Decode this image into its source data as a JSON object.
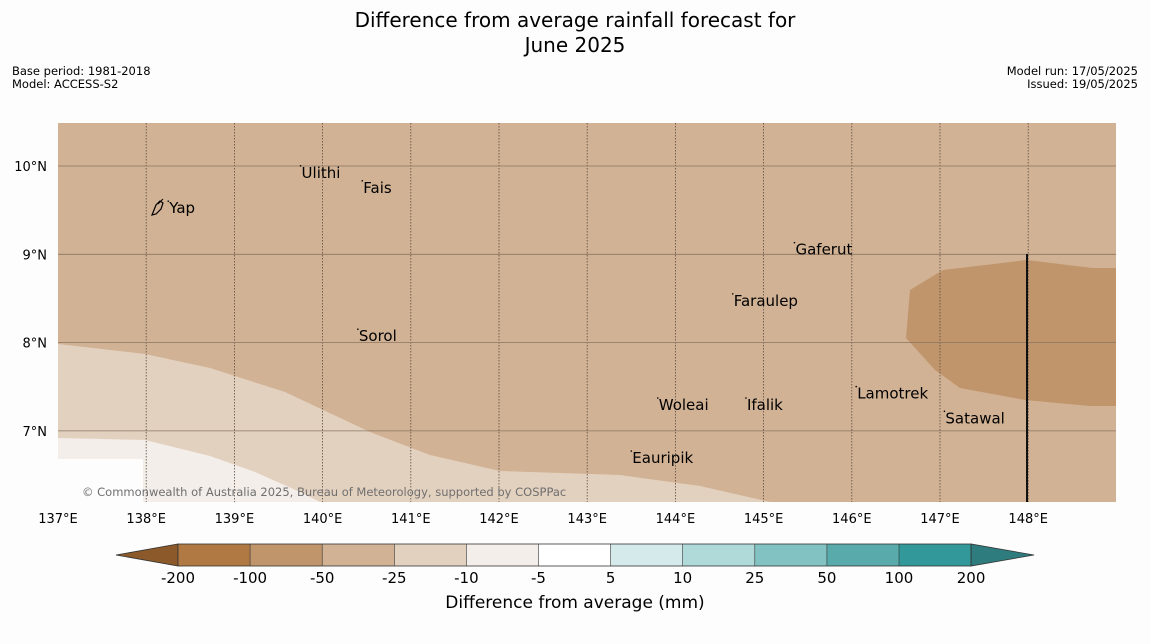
{
  "title": {
    "line1": "Difference from average rainfall forecast for",
    "line2": "June 2025"
  },
  "meta_left": {
    "base_period": "Base period: 1981-2018",
    "model": "Model: ACCESS-S2"
  },
  "meta_right": {
    "model_run": "Model run: 17/05/2025",
    "issued": "Issued: 19/05/2025"
  },
  "map": {
    "lon_ticks": [
      "137°E",
      "138°E",
      "139°E",
      "140°E",
      "141°E",
      "142°E",
      "143°E",
      "144°E",
      "145°E",
      "146°E",
      "147°E",
      "148°E"
    ],
    "lat_ticks": [
      "10°N",
      "9°N",
      "8°N",
      "7°N"
    ],
    "copyright": "© Commonwealth of Australia 2025, Bureau of Meteorology, supported by COSPPac",
    "places": [
      {
        "name": "Yap",
        "lon": 138.25,
        "lat": 9.5
      },
      {
        "name": "Ulithi",
        "lon": 139.75,
        "lat": 9.9
      },
      {
        "name": "Fais",
        "lon": 140.45,
        "lat": 9.73
      },
      {
        "name": "Gaferut",
        "lon": 145.35,
        "lat": 9.03
      },
      {
        "name": "Faraulep",
        "lon": 144.65,
        "lat": 8.45
      },
      {
        "name": "Sorol",
        "lon": 140.4,
        "lat": 8.05
      },
      {
        "name": "Lamotrek",
        "lon": 146.05,
        "lat": 7.4
      },
      {
        "name": "Woleai",
        "lon": 143.8,
        "lat": 7.27
      },
      {
        "name": "Ifalik",
        "lon": 144.8,
        "lat": 7.27
      },
      {
        "name": "Satawal",
        "lon": 147.05,
        "lat": 7.12
      },
      {
        "name": "Eauripik",
        "lon": 143.5,
        "lat": 6.67
      }
    ]
  },
  "colorbar": {
    "title": "Difference from average (mm)",
    "labels": [
      "-200",
      "-100",
      "-50",
      "-25",
      "-10",
      "-5",
      "5",
      "10",
      "25",
      "50",
      "100",
      "200"
    ],
    "colors": {
      "under": "#8c5a2a",
      "bins": [
        "#b07842",
        "#c0956c",
        "#d1b294",
        "#e3d1c0",
        "#f3eeea",
        "#ffffff",
        "#d5eaea",
        "#b0d9da",
        "#82c2c2",
        "#58aaab",
        "#33989a"
      ],
      "over": "#2e7c7d",
      "outline": "#333333"
    }
  },
  "fields": {
    "colors": {
      "base": "#d1b294",
      "light": "#e3d1c0",
      "lighter": "#f3eeea",
      "dark": "#c0956c"
    }
  }
}
